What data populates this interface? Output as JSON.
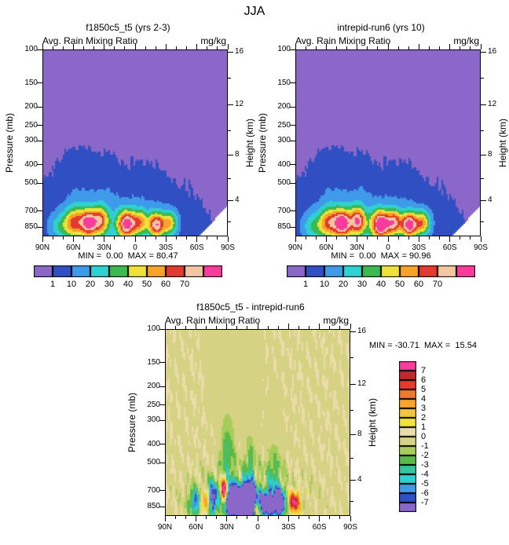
{
  "title": "JJA",
  "palettes": {
    "rain": {
      "colors": [
        "#8A67C9",
        "#2F4FC2",
        "#3F9BE9",
        "#2FD0D0",
        "#3CBA50",
        "#EFE13A",
        "#F7A32A",
        "#E23A2E",
        "#F2C6A0",
        "#F93C9C"
      ],
      "labels": [
        "1",
        "10",
        "20",
        "30",
        "40",
        "50",
        "60",
        "70"
      ]
    },
    "diff": {
      "colors": [
        "#8A67C9",
        "#2F4FC2",
        "#3F9BE9",
        "#2FD0D0",
        "#35C49B",
        "#58BB49",
        "#A8CC5A",
        "#D6D284",
        "#EADCA8",
        "#EFE13A",
        "#F3C53A",
        "#F9A52B",
        "#F07828",
        "#E23A2E",
        "#C02A2A",
        "#F93C9C"
      ],
      "labels": [
        "7",
        "6",
        "5",
        "4",
        "3",
        "2",
        "1",
        "0",
        "-1",
        "-2",
        "-3",
        "-4",
        "-5",
        "-6",
        "-7"
      ]
    }
  },
  "chart_data": [
    {
      "type": "heatmap",
      "title": "f1850c5_t5 (yrs 2-3)",
      "variable": "Avg. Rain Mixing Ratio",
      "units": "mg/kg",
      "season": "JJA",
      "min": 0.0,
      "max": 80.47,
      "minmax_label": "MIN =  0.00  MAX = 80.47",
      "x_axis": {
        "ticks": [
          "90N",
          "60N",
          "30N",
          "0",
          "30S",
          "60S",
          "90S"
        ]
      },
      "y_axis_left": {
        "label": "Pressure (mb)",
        "scale": "log",
        "ticks": [
          100,
          150,
          200,
          250,
          300,
          400,
          500,
          700,
          850
        ]
      },
      "y_axis_right": {
        "label": "Height (km)",
        "ticks": [
          {
            "km": 16,
            "p": 103
          },
          {
            "km": 12,
            "p": 194
          },
          {
            "km": 8,
            "p": 356
          },
          {
            "km": 4,
            "p": 616
          }
        ],
        "minor_p": [
          141,
          265,
          472,
          795
        ]
      },
      "contour_levels": [
        1,
        10,
        20,
        30,
        40,
        50,
        60,
        70,
        80
      ],
      "palette": "rain",
      "surface_mask_south": true,
      "field_model_gaussians": [
        {
          "a": 12,
          "lat": 25,
          "p": 845,
          "slat": 42,
          "sy": 0.1
        },
        {
          "a": 9,
          "lat": 50,
          "p": 730,
          "slat": 22,
          "sy": 0.16
        },
        {
          "a": 6,
          "lat": 5,
          "p": 720,
          "slat": 25,
          "sy": 0.13
        },
        {
          "a": 5,
          "lat": -30,
          "p": 800,
          "slat": 15,
          "sy": 0.1
        },
        {
          "a": 3,
          "lat": 57,
          "p": 480,
          "slat": 8,
          "sy": 0.09
        },
        {
          "a": 2.5,
          "lat": 30,
          "p": 520,
          "slat": 6,
          "sy": 0.08
        },
        {
          "a": 2.5,
          "lat": -10,
          "p": 520,
          "slat": 7,
          "sy": 0.08
        },
        {
          "a": 20,
          "lat": 72,
          "p": 835,
          "slat": 8,
          "sy": 0.05
        },
        {
          "a": 40,
          "lat": 60,
          "p": 790,
          "slat": 6,
          "sy": 0.055
        },
        {
          "a": 68,
          "lat": 46,
          "p": 800,
          "slat": 6,
          "sy": 0.05
        },
        {
          "a": 45,
          "lat": 34,
          "p": 775,
          "slat": 5,
          "sy": 0.05
        },
        {
          "a": 72,
          "lat": 9,
          "p": 812,
          "slat": 6,
          "sy": 0.05
        },
        {
          "a": 40,
          "lat": -4,
          "p": 790,
          "slat": 5,
          "sy": 0.045
        },
        {
          "a": 66,
          "lat": -20,
          "p": 818,
          "slat": 5.5,
          "sy": 0.045
        },
        {
          "a": 38,
          "lat": -33,
          "p": 800,
          "slat": 5,
          "sy": 0.045
        }
      ],
      "noise": {
        "lat": 15,
        "slat": 55,
        "y": 0.78,
        "sy": 0.16,
        "bias": 0,
        "amp": 1.2
      }
    },
    {
      "type": "heatmap",
      "title": "intrepid-run6 (yrs 10)",
      "variable": "Avg. Rain Mixing Ratio",
      "units": "mg/kg",
      "season": "JJA",
      "min": 0.0,
      "max": 90.96,
      "minmax_label": "MIN =  0.00  MAX = 90.96",
      "x_axis": {
        "ticks": [
          "90N",
          "60N",
          "30N",
          "0",
          "30S",
          "60S",
          "90S"
        ]
      },
      "y_axis_left": {
        "label": "Pressure (mb)",
        "scale": "log",
        "ticks": [
          100,
          150,
          200,
          250,
          300,
          400,
          500,
          700,
          850
        ]
      },
      "y_axis_right": {
        "label": "Height (km)",
        "ticks": [
          {
            "km": 16,
            "p": 103
          },
          {
            "km": 12,
            "p": 194
          },
          {
            "km": 8,
            "p": 356
          },
          {
            "km": 4,
            "p": 616
          }
        ],
        "minor_p": [
          141,
          265,
          472,
          795
        ]
      },
      "contour_levels": [
        1,
        10,
        20,
        30,
        40,
        50,
        60,
        70,
        80
      ],
      "palette": "rain",
      "surface_mask_south": true,
      "field_model_gaussians": [
        {
          "a": 12,
          "lat": 25,
          "p": 845,
          "slat": 42,
          "sy": 0.1
        },
        {
          "a": 9,
          "lat": 50,
          "p": 730,
          "slat": 22,
          "sy": 0.16
        },
        {
          "a": 7,
          "lat": 5,
          "p": 720,
          "slat": 25,
          "sy": 0.13
        },
        {
          "a": 5,
          "lat": -30,
          "p": 800,
          "slat": 15,
          "sy": 0.1
        },
        {
          "a": 3,
          "lat": 57,
          "p": 480,
          "slat": 8,
          "sy": 0.09
        },
        {
          "a": 2.5,
          "lat": 28,
          "p": 520,
          "slat": 6,
          "sy": 0.08
        },
        {
          "a": 2.5,
          "lat": -12,
          "p": 520,
          "slat": 7,
          "sy": 0.08
        },
        {
          "a": 22,
          "lat": 72,
          "p": 835,
          "slat": 8,
          "sy": 0.05
        },
        {
          "a": 42,
          "lat": 58,
          "p": 790,
          "slat": 6,
          "sy": 0.055
        },
        {
          "a": 74,
          "lat": 45,
          "p": 805,
          "slat": 6,
          "sy": 0.05
        },
        {
          "a": 60,
          "lat": 30,
          "p": 780,
          "slat": 5,
          "sy": 0.05
        },
        {
          "a": 80,
          "lat": 8,
          "p": 815,
          "slat": 6,
          "sy": 0.05
        },
        {
          "a": 55,
          "lat": -5,
          "p": 795,
          "slat": 5,
          "sy": 0.045
        },
        {
          "a": 76,
          "lat": -20,
          "p": 818,
          "slat": 5.5,
          "sy": 0.045
        },
        {
          "a": 44,
          "lat": -33,
          "p": 800,
          "slat": 5,
          "sy": 0.045
        }
      ],
      "noise": {
        "lat": 15,
        "slat": 55,
        "y": 0.78,
        "sy": 0.16,
        "bias": 0,
        "amp": 1.2
      }
    },
    {
      "type": "heatmap",
      "title": "f1850c5_t5 - intrepid-run6",
      "variable": "Avg. Rain Mixing Ratio",
      "units": "mg/kg",
      "season": "JJA",
      "min": -30.71,
      "max": 15.54,
      "minmax_label": "MIN = -30.71  MAX =  15.54",
      "x_axis": {
        "ticks": [
          "90N",
          "60N",
          "30N",
          "0",
          "30S",
          "60S",
          "90S"
        ]
      },
      "y_axis_left": {
        "label": "Pressure (mb)",
        "scale": "log",
        "ticks": [
          100,
          150,
          200,
          250,
          300,
          400,
          500,
          700,
          850
        ]
      },
      "y_axis_right": {
        "label": "Height (km)",
        "ticks": [
          {
            "km": 16,
            "p": 103
          },
          {
            "km": 12,
            "p": 194
          },
          {
            "km": 8,
            "p": 356
          },
          {
            "km": 4,
            "p": 616
          }
        ],
        "minor_p": [
          141,
          265,
          472,
          795
        ]
      },
      "contour_levels": [
        -7,
        -6,
        -5,
        -4,
        -3,
        -2,
        -1,
        0,
        1,
        2,
        3,
        4,
        5,
        6,
        7
      ],
      "palette": "diff",
      "surface_mask_south": false,
      "field_model_gaussians": [
        {
          "a": -26,
          "lat": 12,
          "p": 805,
          "slat": 6,
          "sy": 0.06
        },
        {
          "a": -14,
          "lat": 27,
          "p": 775,
          "slat": 4.5,
          "sy": 0.055
        },
        {
          "a": -10,
          "lat": -8,
          "p": 812,
          "slat": 5,
          "sy": 0.05
        },
        {
          "a": -12,
          "lat": -20,
          "p": 805,
          "slat": 4,
          "sy": 0.05
        },
        {
          "a": -8,
          "lat": 45,
          "p": 765,
          "slat": 5,
          "sy": 0.06
        },
        {
          "a": -6,
          "lat": 60,
          "p": 800,
          "slat": 5,
          "sy": 0.05
        },
        {
          "a": 10,
          "lat": 52,
          "p": 790,
          "slat": 3.5,
          "sy": 0.045
        },
        {
          "a": 13,
          "lat": 33,
          "p": 700,
          "slat": 3,
          "sy": 0.05
        },
        {
          "a": 8,
          "lat": -35,
          "p": 795,
          "slat": 4,
          "sy": 0.04
        },
        {
          "a": 6,
          "lat": 3,
          "p": 865,
          "slat": 3,
          "sy": 0.03
        },
        {
          "a": -3,
          "lat": 30,
          "p": 470,
          "slat": 5,
          "sy": 0.16
        },
        {
          "a": -2.5,
          "lat": 8,
          "p": 520,
          "slat": 4,
          "sy": 0.12
        },
        {
          "a": -2.6,
          "lat": -15,
          "p": 560,
          "slat": 5,
          "sy": 0.1
        }
      ],
      "noise": {
        "lat": 10,
        "slat": 48,
        "y": 0.88,
        "sy": 0.13,
        "bias": -0.9,
        "amp": 2.4
      }
    }
  ]
}
